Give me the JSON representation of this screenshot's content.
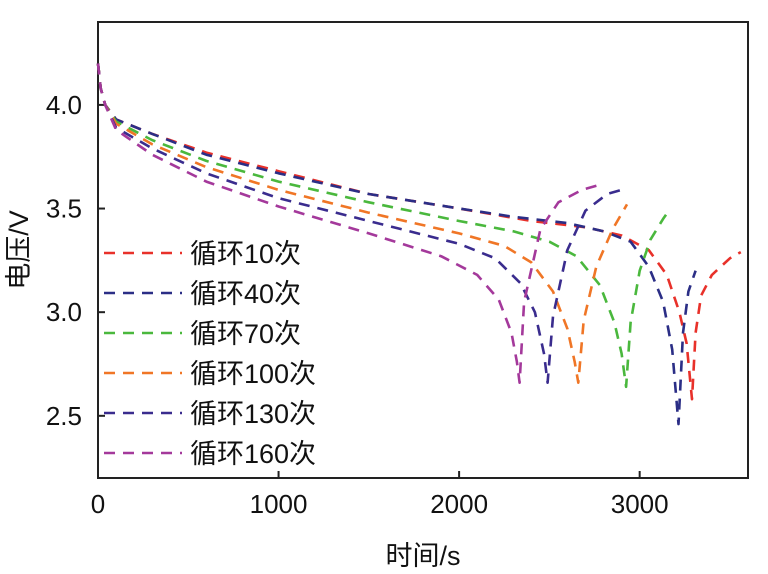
{
  "chart_data": {
    "type": "line",
    "title": "",
    "xlabel": "时间/s",
    "ylabel": "电压/V",
    "xlim": [
      0,
      3600
    ],
    "ylim": [
      2.2,
      4.4
    ],
    "xticks": [
      0,
      1000,
      2000,
      3000
    ],
    "xtick_labels": [
      "0",
      "1000",
      "2000",
      "3000"
    ],
    "yticks": [
      2.5,
      3.0,
      3.5,
      4.0
    ],
    "ytick_labels": [
      "2.5",
      "3.0",
      "3.5",
      "4.0"
    ],
    "grid": false,
    "legend_position": "lower-left",
    "line_style": "dashed",
    "series": [
      {
        "name": "循环10次",
        "color": "#e8312a",
        "points": [
          [
            0,
            4.2
          ],
          [
            15,
            4.08
          ],
          [
            40,
            4.0
          ],
          [
            100,
            3.93
          ],
          [
            300,
            3.86
          ],
          [
            600,
            3.77
          ],
          [
            1000,
            3.68
          ],
          [
            1500,
            3.57
          ],
          [
            2000,
            3.5
          ],
          [
            2400,
            3.44
          ],
          [
            2700,
            3.41
          ],
          [
            2900,
            3.37
          ],
          [
            3050,
            3.3
          ],
          [
            3150,
            3.18
          ],
          [
            3220,
            3.0
          ],
          [
            3260,
            2.85
          ],
          [
            3290,
            2.58
          ],
          [
            3310,
            2.9
          ],
          [
            3340,
            3.08
          ],
          [
            3400,
            3.18
          ],
          [
            3500,
            3.26
          ],
          [
            3560,
            3.29
          ]
        ]
      },
      {
        "name": "循环40次",
        "color": "#2b2e86",
        "points": [
          [
            0,
            4.2
          ],
          [
            15,
            4.08
          ],
          [
            40,
            4.0
          ],
          [
            100,
            3.93
          ],
          [
            300,
            3.86
          ],
          [
            600,
            3.76
          ],
          [
            1000,
            3.67
          ],
          [
            1500,
            3.57
          ],
          [
            2000,
            3.5
          ],
          [
            2300,
            3.46
          ],
          [
            2600,
            3.43
          ],
          [
            2800,
            3.39
          ],
          [
            2950,
            3.34
          ],
          [
            3050,
            3.22
          ],
          [
            3130,
            3.05
          ],
          [
            3180,
            2.82
          ],
          [
            3215,
            2.46
          ],
          [
            3240,
            2.9
          ],
          [
            3270,
            3.1
          ],
          [
            3310,
            3.2
          ]
        ]
      },
      {
        "name": "循环70次",
        "color": "#4ab83d",
        "points": [
          [
            0,
            4.2
          ],
          [
            15,
            4.08
          ],
          [
            40,
            4.0
          ],
          [
            100,
            3.92
          ],
          [
            300,
            3.83
          ],
          [
            600,
            3.73
          ],
          [
            1000,
            3.63
          ],
          [
            1500,
            3.53
          ],
          [
            2000,
            3.44
          ],
          [
            2300,
            3.39
          ],
          [
            2500,
            3.34
          ],
          [
            2650,
            3.27
          ],
          [
            2780,
            3.13
          ],
          [
            2860,
            2.95
          ],
          [
            2900,
            2.8
          ],
          [
            2925,
            2.64
          ],
          [
            2950,
            2.95
          ],
          [
            3000,
            3.2
          ],
          [
            3060,
            3.35
          ],
          [
            3130,
            3.45
          ],
          [
            3170,
            3.5
          ]
        ]
      },
      {
        "name": "循环100次",
        "color": "#f07626",
        "points": [
          [
            0,
            4.2
          ],
          [
            15,
            4.08
          ],
          [
            40,
            4.0
          ],
          [
            100,
            3.91
          ],
          [
            300,
            3.81
          ],
          [
            600,
            3.7
          ],
          [
            1000,
            3.59
          ],
          [
            1500,
            3.48
          ],
          [
            2000,
            3.38
          ],
          [
            2250,
            3.32
          ],
          [
            2400,
            3.24
          ],
          [
            2520,
            3.1
          ],
          [
            2600,
            2.92
          ],
          [
            2640,
            2.76
          ],
          [
            2660,
            2.66
          ],
          [
            2690,
            2.96
          ],
          [
            2760,
            3.22
          ],
          [
            2850,
            3.4
          ],
          [
            2930,
            3.52
          ]
        ]
      },
      {
        "name": "循环130次",
        "color": "#3a2c8e",
        "points": [
          [
            0,
            4.2
          ],
          [
            15,
            4.08
          ],
          [
            40,
            4.0
          ],
          [
            100,
            3.89
          ],
          [
            300,
            3.79
          ],
          [
            600,
            3.67
          ],
          [
            1000,
            3.55
          ],
          [
            1500,
            3.44
          ],
          [
            2000,
            3.33
          ],
          [
            2200,
            3.26
          ],
          [
            2340,
            3.14
          ],
          [
            2420,
            3.0
          ],
          [
            2470,
            2.8
          ],
          [
            2490,
            2.66
          ],
          [
            2520,
            2.98
          ],
          [
            2600,
            3.3
          ],
          [
            2700,
            3.49
          ],
          [
            2820,
            3.57
          ],
          [
            2900,
            3.59
          ]
        ]
      },
      {
        "name": "循环160次",
        "color": "#a4399b",
        "points": [
          [
            0,
            4.2
          ],
          [
            15,
            4.08
          ],
          [
            40,
            4.0
          ],
          [
            100,
            3.88
          ],
          [
            300,
            3.76
          ],
          [
            600,
            3.63
          ],
          [
            1000,
            3.51
          ],
          [
            1500,
            3.38
          ],
          [
            1900,
            3.27
          ],
          [
            2100,
            3.18
          ],
          [
            2220,
            3.06
          ],
          [
            2290,
            2.9
          ],
          [
            2320,
            2.76
          ],
          [
            2335,
            2.66
          ],
          [
            2360,
            3.05
          ],
          [
            2450,
            3.4
          ],
          [
            2550,
            3.53
          ],
          [
            2680,
            3.59
          ],
          [
            2800,
            3.62
          ]
        ]
      }
    ]
  }
}
